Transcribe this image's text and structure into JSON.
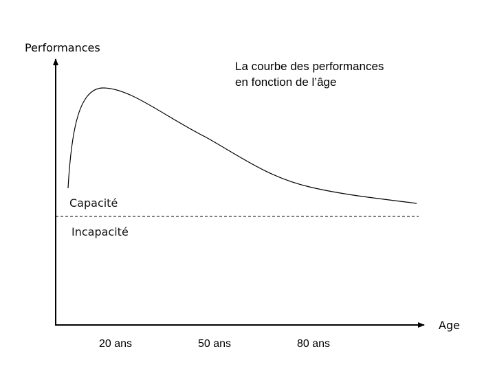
{
  "title_lines": [
    "La courbe des performances",
    "en fonction de l’âge"
  ],
  "y_axis_label": "Performances",
  "x_axis_label": "Age",
  "x_ticks": [
    "20 ans",
    "50 ans",
    "80 ans"
  ],
  "zones": {
    "above": "Capacité",
    "below": "Incapacité"
  },
  "colors": {
    "line": "#000000",
    "background": "#ffffff"
  }
}
